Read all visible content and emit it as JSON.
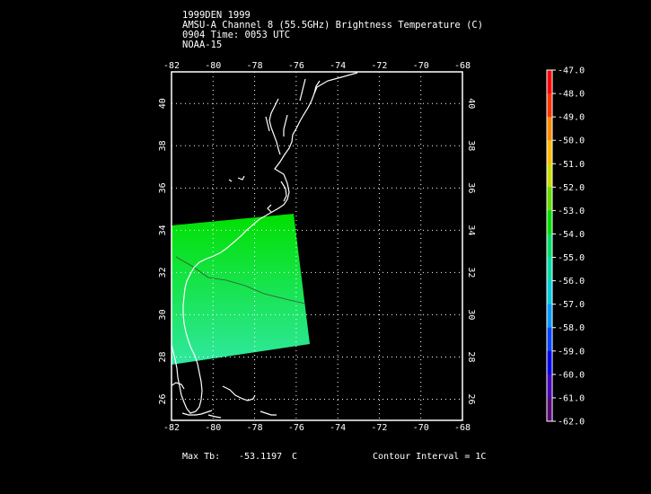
{
  "header": {
    "line1": "1999DEN 1999",
    "line2": "AMSU-A Channel 8 (55.5GHz) Brightness Temperature (C)",
    "line3": "0904 Time: 0053 UTC",
    "line4": "NOAA-15"
  },
  "map": {
    "lon_ticks": [
      "-82",
      "-80",
      "-78",
      "-76",
      "-74",
      "-72",
      "-70",
      "-68"
    ],
    "lat_ticks": [
      "40",
      "38",
      "36",
      "34",
      "32",
      "30",
      "28",
      "26"
    ],
    "lon_range": [
      -82,
      -68
    ],
    "lat_range": [
      25,
      41
    ],
    "grid": true,
    "swath_color_top": "#00e000",
    "swath_color_bottom": "#30e8a0"
  },
  "colorbar": {
    "labels": [
      "-47.0",
      "-48.0",
      "-49.0",
      "-50.0",
      "-51.0",
      "-52.0",
      "-53.0",
      "-54.0",
      "-55.0",
      "-56.0",
      "-57.0",
      "-58.0",
      "-59.0",
      "-60.0",
      "-61.0",
      "-62.0"
    ],
    "colors": [
      "#ff0000",
      "#ff3300",
      "#ff8800",
      "#ffbb00",
      "#ccdd00",
      "#66dd00",
      "#00dd00",
      "#00dd66",
      "#00ddaa",
      "#00ccdd",
      "#0099ff",
      "#0044ff",
      "#0000ee",
      "#4400bb",
      "#550077",
      "#ffffff"
    ]
  },
  "footer": {
    "max_label": "Max Tb:",
    "max_value": "-53.1197",
    "max_unit": "C",
    "contour": "Contour Interval = 1C"
  }
}
